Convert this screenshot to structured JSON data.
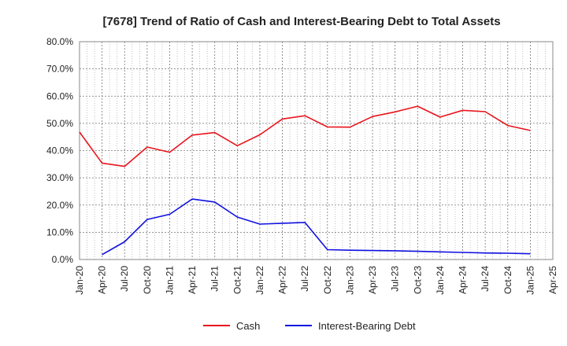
{
  "chart_data": {
    "type": "line",
    "title": "[7678]  Trend of Ratio of Cash and Interest-Bearing Debt to Total Assets",
    "xlabel": "",
    "ylabel": "",
    "ylim": [
      0,
      80
    ],
    "yticks": [
      0,
      10,
      20,
      30,
      40,
      50,
      60,
      70,
      80
    ],
    "ytick_labels": [
      "0.0%",
      "10.0%",
      "20.0%",
      "30.0%",
      "40.0%",
      "50.0%",
      "60.0%",
      "70.0%",
      "80.0%"
    ],
    "xtick_labels": [
      "Jan-20",
      "Apr-20",
      "Jul-20",
      "Oct-20",
      "Jan-21",
      "Apr-21",
      "Jul-21",
      "Oct-21",
      "Jan-22",
      "Apr-22",
      "Jul-22",
      "Oct-22",
      "Jan-23",
      "Apr-23",
      "Jul-23",
      "Oct-23",
      "Jan-24",
      "Apr-24",
      "Jul-24",
      "Oct-24",
      "Jan-25",
      "Apr-25"
    ],
    "grid": true,
    "legend_position": "bottom",
    "series": [
      {
        "name": "Cash",
        "color": "#e8141c",
        "points": [
          {
            "x": "Jan-20",
            "y": 46.8
          },
          {
            "x": "Apr-20",
            "y": 35.4
          },
          {
            "x": "Jul-20",
            "y": 34.2
          },
          {
            "x": "Oct-20",
            "y": 41.3
          },
          {
            "x": "Jan-21",
            "y": 39.4
          },
          {
            "x": "Apr-21",
            "y": 45.7
          },
          {
            "x": "Jul-21",
            "y": 46.6
          },
          {
            "x": "Oct-21",
            "y": 41.8
          },
          {
            "x": "Jan-22",
            "y": 45.8
          },
          {
            "x": "Apr-22",
            "y": 51.6
          },
          {
            "x": "Jul-22",
            "y": 52.8
          },
          {
            "x": "Oct-22",
            "y": 48.7
          },
          {
            "x": "Jan-23",
            "y": 48.6
          },
          {
            "x": "Apr-23",
            "y": 52.5
          },
          {
            "x": "Jul-23",
            "y": 54.2
          },
          {
            "x": "Oct-23",
            "y": 56.3
          },
          {
            "x": "Jan-24",
            "y": 52.3
          },
          {
            "x": "Apr-24",
            "y": 54.8
          },
          {
            "x": "Jul-24",
            "y": 54.3
          },
          {
            "x": "Oct-24",
            "y": 49.2
          },
          {
            "x": "Jan-25",
            "y": 47.4
          }
        ]
      },
      {
        "name": "Interest-Bearing Debt",
        "color": "#1010e0",
        "points": [
          {
            "x": "Apr-20",
            "y": 1.8
          },
          {
            "x": "Jul-20",
            "y": 6.5
          },
          {
            "x": "Oct-20",
            "y": 14.7
          },
          {
            "x": "Jan-21",
            "y": 16.6
          },
          {
            "x": "Apr-21",
            "y": 22.2
          },
          {
            "x": "Jul-21",
            "y": 21.1
          },
          {
            "x": "Oct-21",
            "y": 15.6
          },
          {
            "x": "Jan-22",
            "y": 13.0
          },
          {
            "x": "Apr-22",
            "y": 13.3
          },
          {
            "x": "Jul-22",
            "y": 13.6
          },
          {
            "x": "Oct-22",
            "y": 3.6
          },
          {
            "x": "Jan-23",
            "y": 3.4
          },
          {
            "x": "Apr-23",
            "y": 3.3
          },
          {
            "x": "Jul-23",
            "y": 3.2
          },
          {
            "x": "Oct-23",
            "y": 3.0
          },
          {
            "x": "Jan-24",
            "y": 2.8
          },
          {
            "x": "Apr-24",
            "y": 2.6
          },
          {
            "x": "Jul-24",
            "y": 2.4
          },
          {
            "x": "Oct-24",
            "y": 2.3
          },
          {
            "x": "Jan-25",
            "y": 2.1
          }
        ]
      }
    ]
  }
}
